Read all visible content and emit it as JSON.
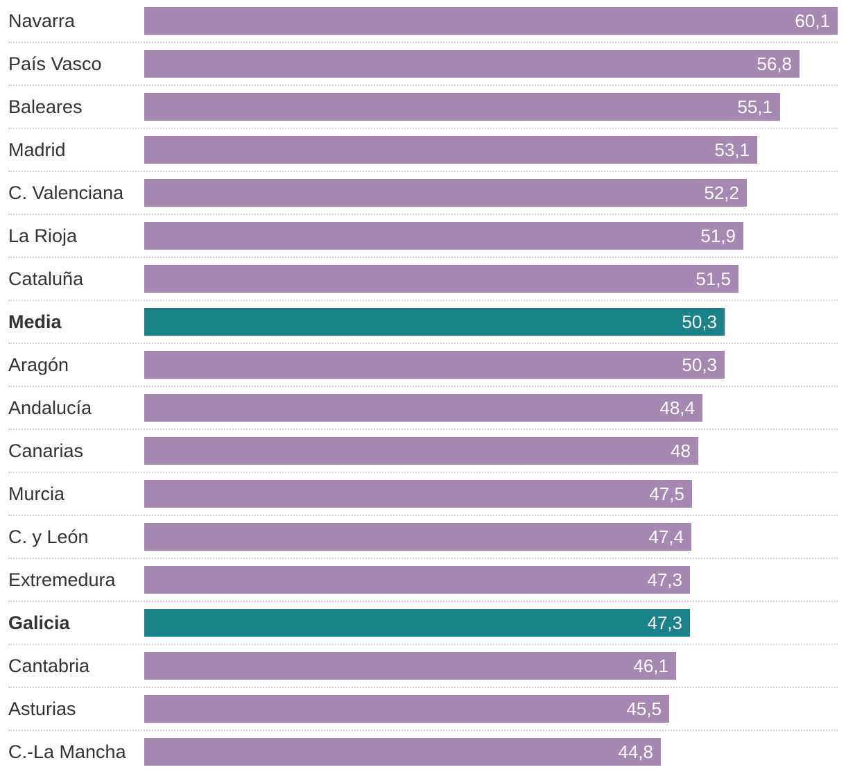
{
  "chart_data": {
    "type": "bar",
    "orientation": "horizontal",
    "title": "",
    "xlabel": "",
    "ylabel": "",
    "xlim": [
      0,
      60.1
    ],
    "grid": false,
    "legend": "none",
    "colors": {
      "default": "#a589b2",
      "highlight": "#1a838a"
    },
    "categories": [
      "Navarra",
      "País Vasco",
      "Baleares",
      "Madrid",
      "C. Valenciana",
      "La Rioja",
      "Cataluña",
      "Media",
      "Aragón",
      "Andalucía",
      "Canarias",
      "Murcia",
      "C. y León",
      "Extremedura",
      "Galicia",
      "Cantabria",
      "Asturias",
      "C.-La Mancha"
    ],
    "values": [
      60.1,
      56.8,
      55.1,
      53.1,
      52.2,
      51.9,
      51.5,
      50.3,
      50.3,
      48.4,
      48,
      47.5,
      47.4,
      47.3,
      47.3,
      46.1,
      45.5,
      44.8
    ],
    "value_labels": [
      "60,1",
      "56,8",
      "55,1",
      "53,1",
      "52,2",
      "51,9",
      "51,5",
      "50,3",
      "50,3",
      "48,4",
      "48",
      "47,5",
      "47,4",
      "47,3",
      "47,3",
      "46,1",
      "45,5",
      "44,8"
    ],
    "highlighted": [
      "Media",
      "Galicia"
    ]
  }
}
